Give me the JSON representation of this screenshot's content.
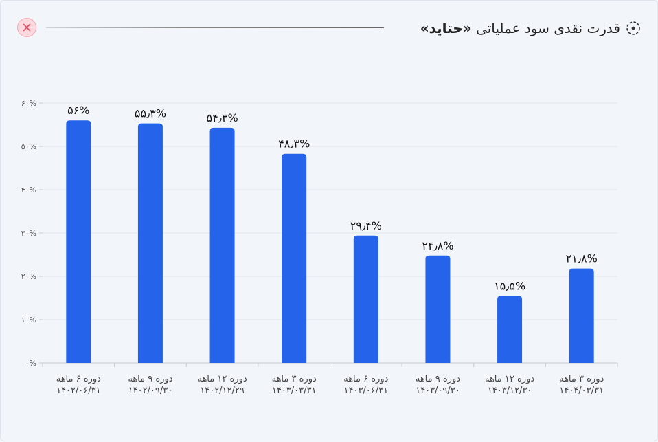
{
  "header": {
    "title_prefix": "قدرت نقدی سود عملیاتی ",
    "title_symbol": "«حتاید»"
  },
  "colors": {
    "bar": "#2563eb",
    "grid": "#e3e7ee",
    "axis": "#c5cad3",
    "close_bg": "#fbd9de",
    "close_x": "#e04a5f"
  },
  "chart_data": {
    "type": "bar",
    "categories": [
      [
        "دوره ۶ ماهه",
        "۱۴۰۲/۰۶/۳۱"
      ],
      [
        "دوره ۹ ماهه",
        "۱۴۰۲/۰۹/۳۰"
      ],
      [
        "دوره ۱۲ ماهه",
        "۱۴۰۲/۱۲/۲۹"
      ],
      [
        "دوره ۳ ماهه",
        "۱۴۰۳/۰۳/۳۱"
      ],
      [
        "دوره ۶ ماهه",
        "۱۴۰۳/۰۶/۳۱"
      ],
      [
        "دوره ۹ ماهه",
        "۱۴۰۳/۰۹/۳۰"
      ],
      [
        "دوره ۱۲ ماهه",
        "۱۴۰۳/۱۲/۳۰"
      ],
      [
        "دوره ۳ ماهه",
        "۱۴۰۴/۰۳/۳۱"
      ]
    ],
    "values": [
      56,
      55.3,
      54.3,
      48.3,
      29.4,
      24.8,
      15.5,
      21.8
    ],
    "value_labels": [
      "۵۶%",
      "۵۵٫۳%",
      "۵۴٫۳%",
      "۴۸٫۳%",
      "۲۹٫۴%",
      "۲۴٫۸%",
      "۱۵٫۵%",
      "۲۱٫۸%"
    ],
    "yticks": [
      0,
      10,
      20,
      30,
      40,
      50,
      60
    ],
    "ytick_labels": [
      "۰%",
      "۱۰%",
      "۲۰%",
      "۳۰%",
      "۴۰%",
      "۵۰%",
      "۶۰%"
    ],
    "ylim": [
      0,
      60
    ],
    "grid": true,
    "legend": "none"
  }
}
